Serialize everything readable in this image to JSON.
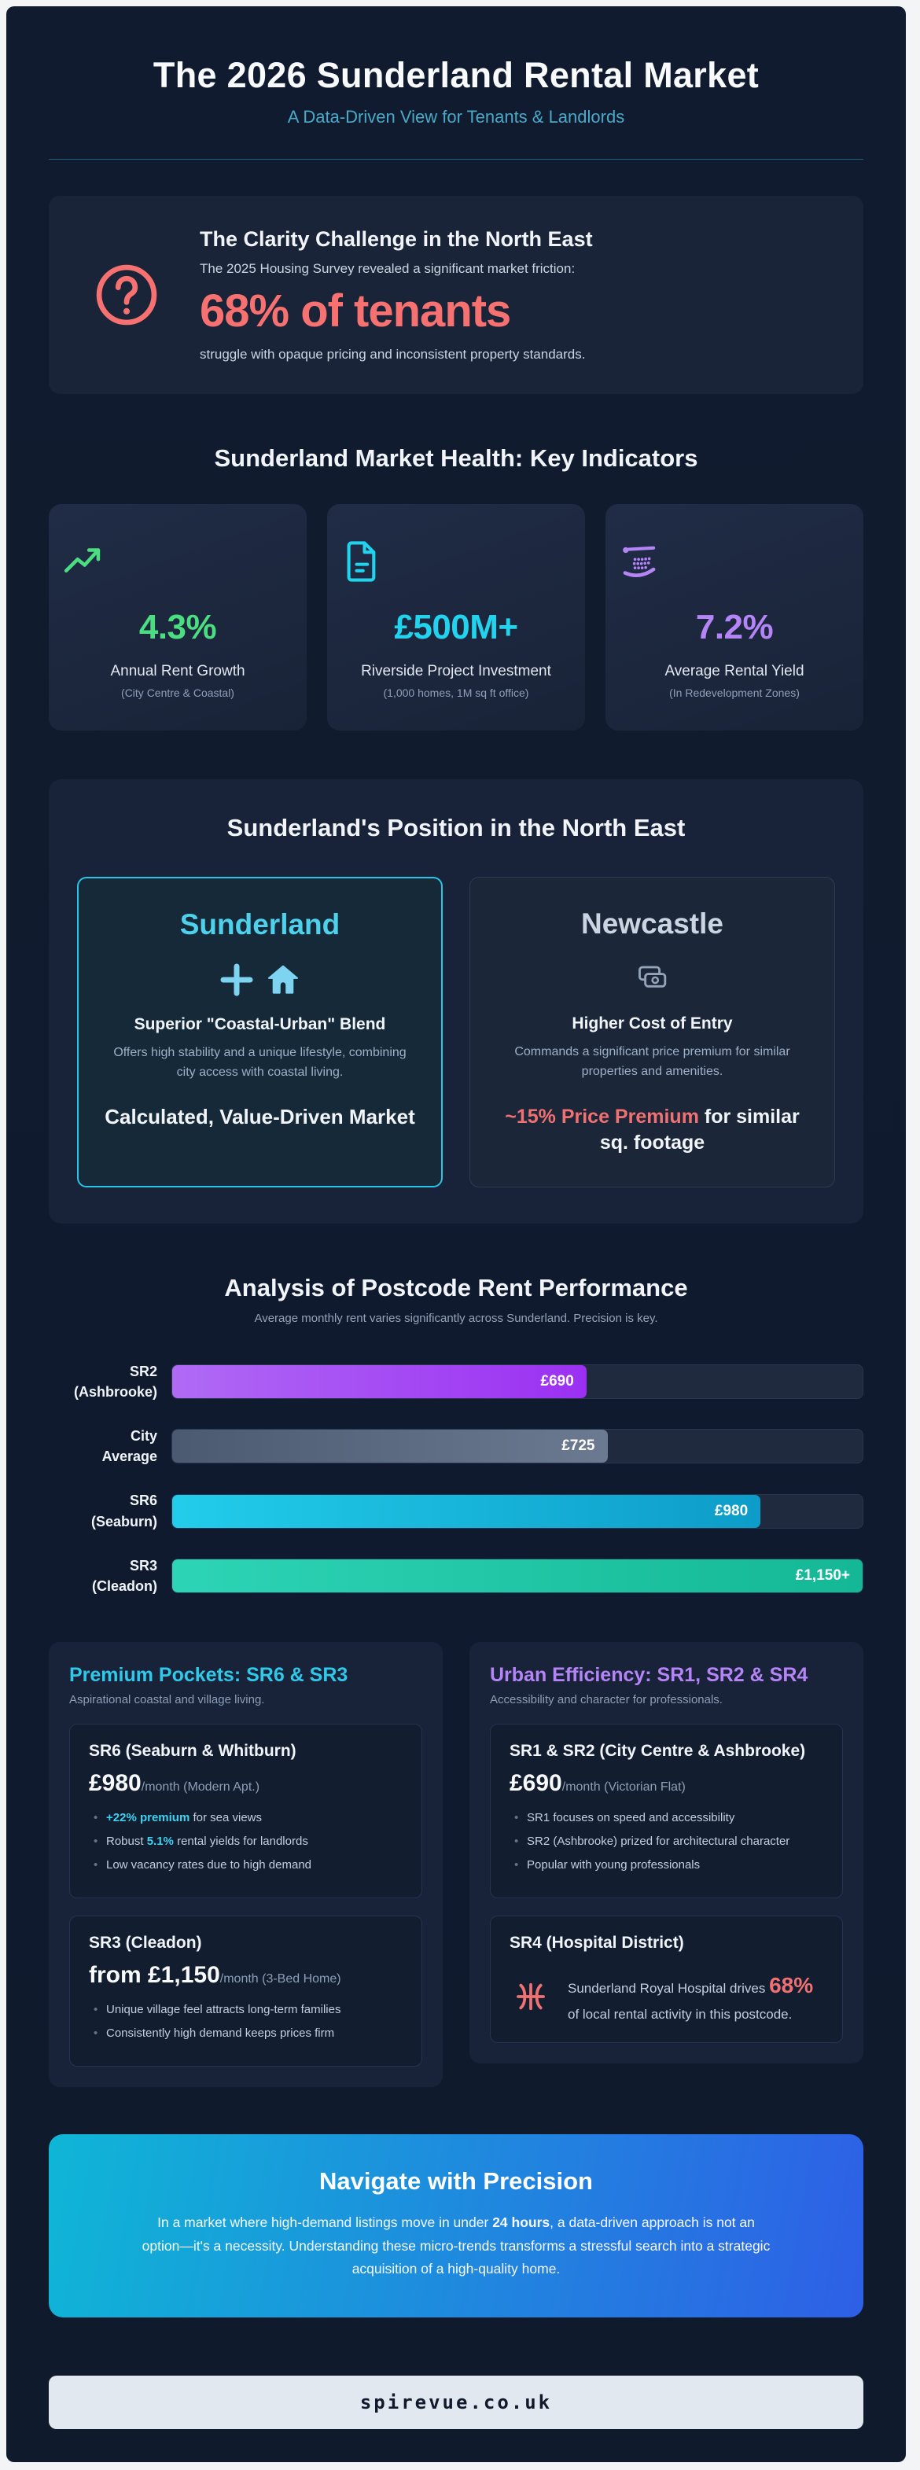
{
  "page": {
    "title": "The 2026 Sunderland Rental Market",
    "subtitle": "A Data-Driven View for Tenants & Landlords"
  },
  "colors": {
    "page_background": "#101a2e",
    "card_background": "#1a2438",
    "accent_cyan": "#22d3ee",
    "accent_green": "#4ade80",
    "accent_purple": "#b584f7",
    "accent_coral": "#f87171",
    "cta_gradient_from": "#0fb6d6",
    "cta_gradient_to": "#2e5fe6",
    "footer_background": "#e2e8f0"
  },
  "clarity": {
    "title": "The Clarity Challenge in the North East",
    "line1": "The 2025 Housing Survey revealed a significant market friction:",
    "stat": "68% of tenants",
    "line2": "struggle with opaque pricing and inconsistent property standards."
  },
  "indicators": {
    "heading": "Sunderland Market Health: Key Indicators",
    "cards": [
      {
        "icon": "trending-up-icon",
        "value": "4.3%",
        "label": "Annual Rent Growth",
        "sublabel": "(City Centre & Coastal)",
        "color": "#4ade80"
      },
      {
        "icon": "document-icon",
        "value": "£500M+",
        "label": "Riverside Project Investment",
        "sublabel": "(1,000 homes, 1M sq ft office)",
        "color": "#22d3ee"
      },
      {
        "icon": "stadium-icon",
        "value": "7.2%",
        "label": "Average Rental Yield",
        "sublabel": "(In Redevelopment Zones)",
        "color": "#b584f7"
      }
    ]
  },
  "position": {
    "heading": "Sunderland's Position in the North East",
    "sunderland": {
      "name": "Sunderland",
      "tagline": "Superior \"Coastal-Urban\" Blend",
      "description": "Offers high stability and a unique lifestyle, combining city access with coastal living.",
      "verdict": "Calculated, Value-Driven Market"
    },
    "newcastle": {
      "name": "Newcastle",
      "tagline": "Higher Cost of Entry",
      "description": "Commands a significant price premium for similar properties and amenities.",
      "premium_highlight": "~15% Price Premium",
      "premium_rest": " for similar sq. footage"
    }
  },
  "chart_data": {
    "type": "bar",
    "orientation": "horizontal",
    "title": "Analysis of Postcode Rent Performance",
    "subtitle": "Average monthly rent varies significantly across Sunderland. Precision is key.",
    "unit": "£ per month",
    "max": 1150,
    "grid": false,
    "bars": [
      {
        "label_line1": "SR2",
        "label_line2": "(Ashbrooke)",
        "value": 690,
        "display_value": "£690",
        "color_from": "#b06af5",
        "color_to": "#9b30f2"
      },
      {
        "label_line1": "City",
        "label_line2": "Average",
        "value": 725,
        "display_value": "£725",
        "color_from": "#4b5a70",
        "color_to": "#6b7a90"
      },
      {
        "label_line1": "SR6",
        "label_line2": "(Seaburn)",
        "value": 980,
        "display_value": "£980",
        "color_from": "#22cdea",
        "color_to": "#0d9cc9"
      },
      {
        "label_line1": "SR3",
        "label_line2": "(Cleadon)",
        "value": 1150,
        "display_value": "£1,150+",
        "color_from": "#2dd4b5",
        "color_to": "#14b896"
      }
    ]
  },
  "premium": {
    "heading": "Premium Pockets: SR6 & SR3",
    "subheading": "Aspirational coastal and village living.",
    "cards": [
      {
        "title": "SR6 (Seaburn & Whitburn)",
        "price": "£980",
        "price_suffix": "/month (Modern Apt.)",
        "bullets": [
          {
            "pre": "",
            "hl": "+22% premium",
            "post": " for sea views"
          },
          {
            "pre": "Robust ",
            "hl": "5.1%",
            "post": " rental yields for landlords"
          },
          {
            "pre": "Low vacancy rates due to high demand",
            "hl": "",
            "post": ""
          }
        ]
      },
      {
        "title": "SR3 (Cleadon)",
        "price": "from £1,150",
        "price_suffix": "/month (3-Bed Home)",
        "bullets": [
          {
            "pre": "Unique village feel attracts long-term families",
            "hl": "",
            "post": ""
          },
          {
            "pre": "Consistently high demand keeps prices firm",
            "hl": "",
            "post": ""
          }
        ]
      }
    ]
  },
  "urban": {
    "heading": "Urban Efficiency: SR1, SR2 & SR4",
    "subheading": "Accessibility and character for professionals.",
    "card1": {
      "title": "SR1 & SR2 (City Centre & Ashbrooke)",
      "price": "£690",
      "price_suffix": "/month (Victorian Flat)",
      "bullets": [
        "SR1 focuses on speed and accessibility",
        "SR2 (Ashbrooke) prized for architectural character",
        "Popular with young professionals"
      ]
    },
    "card2": {
      "title": "SR4 (Hospital District)",
      "line_pre": "Sunderland Royal Hospital drives ",
      "line_stat": "68%",
      "line_post": " of local rental activity in this postcode."
    }
  },
  "cta": {
    "heading": "Navigate with Precision",
    "body_pre": "In a market where high-demand listings move in under ",
    "body_bold": "24 hours",
    "body_post": ", a data-driven approach is not an option—it's a necessity. Understanding these micro-trends transforms a stressful search into a strategic acquisition of a high-quality home."
  },
  "footer": {
    "domain": "spirevue.co.uk"
  }
}
